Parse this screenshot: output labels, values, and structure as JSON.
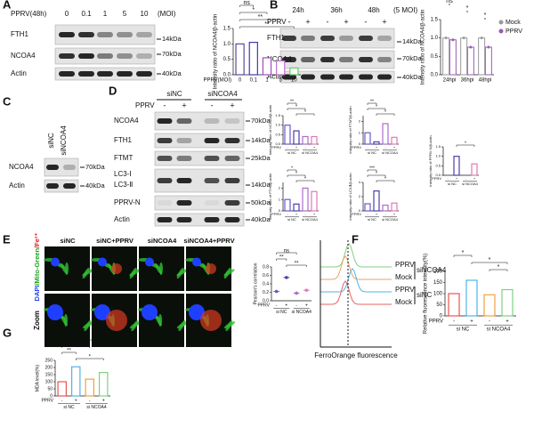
{
  "figure": {
    "panels": [
      "A",
      "B",
      "C",
      "D",
      "E",
      "F",
      "G"
    ]
  },
  "blot_a": {
    "treatment": "PPRV(48h)",
    "lanes": [
      "0",
      "0.1",
      "1",
      "5",
      "10"
    ],
    "unit": "(MOI)",
    "rows": [
      "FTH1",
      "NCOA4",
      "Actin"
    ],
    "markers": [
      "14kDa",
      "70kDa",
      "40kDa"
    ]
  },
  "blot_b": {
    "times": [
      "24h",
      "36h",
      "48h"
    ],
    "unit": "(5 MOI)",
    "treatment": "PPRV",
    "signs": [
      "-",
      "+",
      "-",
      "+",
      "-",
      "+"
    ],
    "rows": [
      "FTH1",
      "NCOA4",
      "Actin"
    ],
    "markers": [
      "14kDa",
      "70kDa",
      "40kDa"
    ]
  },
  "blot_c": {
    "lanes": [
      "siNC",
      "siNCOA4"
    ],
    "rows": [
      "NCOA4",
      "Actin"
    ],
    "markers": [
      "70kDa",
      "40kDa"
    ]
  },
  "blot_d": {
    "groups": [
      "siNC",
      "siNCOA4"
    ],
    "treatment": "PPRV",
    "signs": [
      "-",
      "+",
      "-",
      "+"
    ],
    "rows": [
      "NCOA4",
      "FTH1",
      "FTMT",
      "LC3-Ⅰ",
      "LC3-Ⅱ",
      "PPRV-N",
      "Actin"
    ],
    "markers": [
      "70kDa",
      "14kDa",
      "25kDa",
      "14kDa",
      "50kDa",
      "40kDa"
    ]
  },
  "images_e": {
    "columns": [
      "siNC",
      "siNC+PPRV",
      "siNCOA4",
      "siNCOA4+PPRV"
    ],
    "channel_label": [
      "DAPI",
      "/Mito-Green",
      "/Fe²⁺"
    ],
    "zoom_label": "Zoom"
  },
  "flow_f": {
    "samples": [
      "PPRV",
      "Mock",
      "PPRV",
      "Mock"
    ],
    "groups": [
      "siNCOA4",
      "siNC"
    ],
    "xlabel": "FerroOrange fluorescence"
  },
  "chart_data": [
    {
      "type": "bar",
      "ylabel": "Intensity ratio of NCOA4/β-actin",
      "xlabel": "PPRV(MOI)",
      "categories": [
        "0",
        "0.1",
        "1",
        "5",
        "10"
      ],
      "values": [
        1.0,
        1.05,
        0.55,
        0.45,
        0.22
      ],
      "colors": [
        "#5b4a9e",
        "#3f3cb0",
        "#a04cc0",
        "#c070d0",
        "#66cc66"
      ],
      "ylim": [
        0,
        1.5
      ],
      "yticks": [
        {
          "value": 0,
          "label": "0.0"
        },
        0.5,
        {
          "value": 1,
          "label": "1.0"
        },
        1.5
      ],
      "significance": [
        "ns",
        "*",
        "**",
        "**"
      ]
    },
    {
      "type": "bar",
      "ylabel": "Intensity ratio of NCOA4/β-actin",
      "categories": [
        "24hpi",
        "36hpi",
        "48hpi"
      ],
      "series": [
        {
          "name": "Mock",
          "color": "#9a9a9a",
          "values": [
            1.0,
            1.0,
            1.0
          ]
        },
        {
          "name": "PPRV",
          "color": "#9b59b6",
          "values": [
            0.95,
            0.75,
            0.75
          ]
        }
      ],
      "ylim": [
        0,
        1.5
      ],
      "yticks": [
        {
          "value": 0,
          "label": "0.0"
        },
        0.5,
        {
          "value": 1,
          "label": "1.0"
        },
        1.5
      ],
      "significance": [
        "ns",
        "*",
        "*"
      ],
      "legend": "upper right"
    },
    {
      "type": "bar",
      "ylabel": "Intensity ratio of NCOA4/β-actin",
      "xlabel": "PPRV",
      "categories": [
        "-",
        "+",
        "-",
        "+"
      ],
      "groups": [
        "si NC",
        "si NCOA4"
      ],
      "values": [
        1.0,
        0.7,
        0.4,
        0.4
      ],
      "colors": [
        "#6a5acd",
        "#4b3fa8",
        "#b06ad0",
        "#e07ab0"
      ],
      "ylim": [
        0,
        1.5
      ],
      "yticks": [
        {
          "value": 0,
          "label": "0.0"
        },
        0.5,
        {
          "value": 1,
          "label": "1.0"
        },
        1.5
      ],
      "significance": [
        "**",
        "*",
        "*"
      ]
    },
    {
      "type": "bar",
      "ylabel": "Intensity ratio of FTMT/β-actin",
      "xlabel": "PPRV",
      "categories": [
        "-",
        "+",
        "-",
        "+"
      ],
      "groups": [
        "si NC",
        "si NCOA4"
      ],
      "values": [
        1.0,
        0.2,
        1.8,
        0.6
      ],
      "colors": [
        "#6a5acd",
        "#4b3fa8",
        "#b06ad0",
        "#e07ab0"
      ],
      "ylim": [
        0,
        2.5
      ],
      "yticks": [
        0,
        1,
        2
      ],
      "significance": [
        "**",
        "*",
        "*"
      ]
    },
    {
      "type": "bar",
      "ylabel": "Intensity ratio of FTH1/β-actin",
      "xlabel": "PPRV",
      "categories": [
        "-",
        "+",
        "-",
        "+"
      ],
      "groups": [
        "si NC",
        "si NCOA4"
      ],
      "values": [
        1.0,
        0.6,
        2.0,
        1.7
      ],
      "colors": [
        "#6a5acd",
        "#4b3fa8",
        "#b06ad0",
        "#e07ab0"
      ],
      "ylim": [
        0,
        2.5
      ],
      "yticks": [
        0,
        1,
        2
      ],
      "significance": [
        "*",
        "*",
        "*"
      ]
    },
    {
      "type": "bar",
      "ylabel": "Intensity ratio of LC3-Ⅱ/β-actin",
      "xlabel": "PPRV",
      "categories": [
        "-",
        "+",
        "-",
        "+"
      ],
      "groups": [
        "si NC",
        "si NCOA4"
      ],
      "values": [
        1.0,
        2.8,
        0.8,
        1.1
      ],
      "colors": [
        "#6a5acd",
        "#4b3fa8",
        "#b06ad0",
        "#e07ab0"
      ],
      "ylim": [
        0,
        4
      ],
      "yticks": [
        0,
        2,
        4
      ],
      "significance": [
        "***",
        "*",
        "*"
      ]
    },
    {
      "type": "bar",
      "ylabel": "Intensity ratio of PPRV-N/β-actin",
      "xlabel": "PPRV",
      "categories": [
        "-",
        "+",
        "-",
        "+"
      ],
      "groups": [
        "si NC",
        "si NCOA4"
      ],
      "values": [
        0,
        1.0,
        0,
        0.6
      ],
      "colors": [
        "#6a5acd",
        "#4b3fa8",
        "#b06ad0",
        "#e07ab0"
      ],
      "ylim": [
        0,
        1.5
      ],
      "yticks": [
        {
          "value": 0,
          "label": "0.0"
        },
        0.5,
        {
          "value": 1,
          "label": "1.0"
        },
        1.5
      ],
      "significance": [
        "*"
      ]
    },
    {
      "type": "dot",
      "ylabel": "Pearson's correlation",
      "xlabel": "PPRV",
      "categories": [
        "-",
        "+",
        "-",
        "+"
      ],
      "groups": [
        "si NC",
        "si NCOA4"
      ],
      "values": [
        0.22,
        0.55,
        0.18,
        0.25
      ],
      "colors": [
        "#6a5acd",
        "#4b3fa8",
        "#b06ad0",
        "#e07ab0"
      ],
      "ylim": [
        0,
        0.8
      ],
      "yticks": [
        {
          "value": 0,
          "label": "0.0"
        },
        0.2,
        0.4,
        0.6,
        0.8
      ],
      "significance": [
        "ns",
        "**",
        "**"
      ]
    },
    {
      "type": "bar",
      "ylabel": "Relative fluorescence intensity(%)",
      "xlabel": "PPRV",
      "categories": [
        "-",
        "+",
        "-",
        "+"
      ],
      "groups": [
        "si NC",
        "si NCOA4"
      ],
      "values": [
        100,
        160,
        95,
        118
      ],
      "colors": [
        "#e8554e",
        "#4fb3e8",
        "#f0a040",
        "#7ed17e"
      ],
      "ylim": [
        0,
        200
      ],
      "yticks": [
        0,
        50,
        100,
        150,
        200
      ],
      "significance": [
        "*",
        "*",
        "*"
      ]
    },
    {
      "type": "bar",
      "ylabel": "MDA level(%)",
      "xlabel": "PPRV",
      "categories": [
        "-",
        "+",
        "-",
        "+"
      ],
      "groups": [
        "si NC",
        "si NCOA4"
      ],
      "values": [
        100,
        205,
        118,
        165
      ],
      "colors": [
        "#e8554e",
        "#4fb3e8",
        "#f0a040",
        "#7ed17e"
      ],
      "ylim": [
        0,
        250
      ],
      "yticks": [
        0,
        50,
        100,
        150,
        200,
        250
      ],
      "significance": [
        "*",
        "ns",
        "**",
        "*"
      ]
    }
  ]
}
